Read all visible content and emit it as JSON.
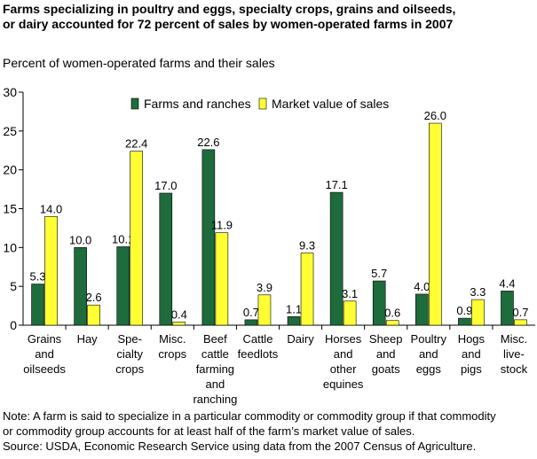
{
  "header": {
    "title_lines": [
      "Farms specializing in poultry and eggs, specialty crops, grains and oilseeds,",
      "or dairy accounted for 72 percent of sales by women-operated farms in 2007"
    ],
    "ylabel": "Percent of women-operated farms and their sales"
  },
  "chart_data": {
    "type": "bar",
    "ylim": [
      0,
      30
    ],
    "yticks": [
      0,
      5,
      10,
      15,
      20,
      25,
      30
    ],
    "grid": false,
    "legend_position": "top",
    "categories": [
      [
        "Grains",
        "and",
        "oilseeds"
      ],
      [
        "Hay"
      ],
      [
        "Spe-",
        "cialty",
        "crops"
      ],
      [
        "Misc.",
        "crops"
      ],
      [
        "Beef",
        "cattle",
        "farming",
        "and",
        "ranching"
      ],
      [
        "Cattle",
        "feedlots"
      ],
      [
        "Dairy"
      ],
      [
        "Horses",
        "and",
        "other",
        "equines"
      ],
      [
        "Sheep",
        "and",
        "goats"
      ],
      [
        "Poultry",
        "and",
        "eggs"
      ],
      [
        "Hogs",
        "and",
        "pigs"
      ],
      [
        "Misc.",
        "live-",
        "stock"
      ]
    ],
    "series": [
      {
        "name": "Farms and ranches",
        "color": "#1e6b3c",
        "values": [
          5.3,
          10.0,
          10.1,
          17.0,
          22.6,
          0.7,
          1.1,
          17.1,
          5.7,
          4.0,
          0.9,
          4.4
        ],
        "labels": [
          "5.3",
          "10.0",
          "10.1",
          "17.0",
          "22.6",
          "0.7",
          "1.1",
          "17.1",
          "5.7",
          "4.0",
          "0.9",
          "4.4"
        ]
      },
      {
        "name": "Market value of sales",
        "color": "#ffff33",
        "values": [
          14.0,
          2.6,
          22.4,
          0.4,
          11.9,
          3.9,
          9.3,
          3.1,
          0.6,
          26.0,
          3.3,
          0.7
        ],
        "labels": [
          "14.0",
          "2.6",
          "22.4",
          "0.4",
          "11.9",
          "3.9",
          "9.3",
          "3.1",
          "0.6",
          "26.0",
          "3.3",
          "0.7"
        ]
      }
    ]
  },
  "footer": {
    "note_lines": [
      "Note: A farm is said to specialize in a particular commodity or commodity group if that commodity",
      "or commodity group accounts for at least half of the farm’s market value of sales."
    ],
    "source": "Source: USDA, Economic Research Service using data from the 2007 Census of Agriculture."
  }
}
